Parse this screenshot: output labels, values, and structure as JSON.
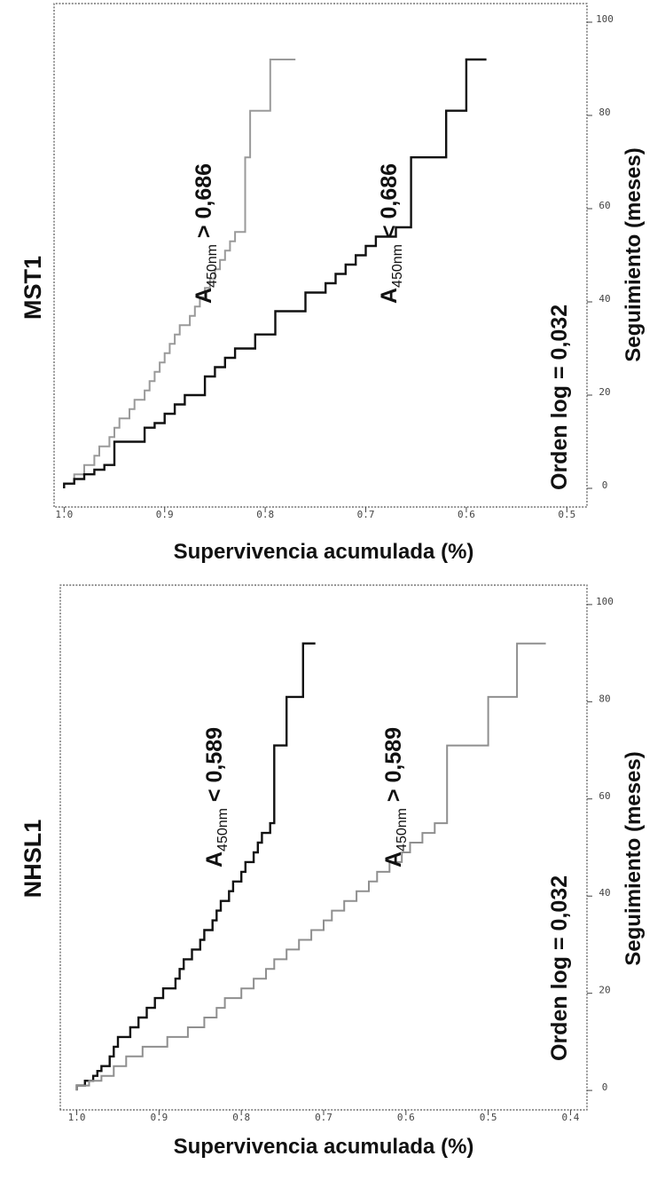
{
  "chart_data": [
    {
      "type": "line",
      "step": true,
      "title": "NHSL1",
      "xlabel": "Seguimiento (meses)",
      "ylabel": "Supervivencia acumulada (%)",
      "xlim": [
        -4,
        104
      ],
      "ylim": [
        0.38,
        1.02
      ],
      "xticks": [
        "0",
        "20",
        "40",
        "60",
        "80",
        "100"
      ],
      "yticks": [
        "1.0",
        "0.9",
        "0.8",
        "0.7",
        "0.6",
        "0.5",
        "0.4"
      ],
      "annotation": "Orden log = 0,032",
      "series": [
        {
          "name_prefix": "A",
          "name_sub": "450nm",
          "name_suffix": " < 0,589",
          "color": "#111111",
          "x": [
            0,
            1,
            2,
            3,
            4,
            5,
            7,
            9,
            11,
            13,
            15,
            17,
            19,
            21,
            23,
            25,
            27,
            29,
            31,
            33,
            35,
            37,
            39,
            41,
            43,
            45,
            47,
            49,
            51,
            53,
            55,
            71,
            81,
            92
          ],
          "y": [
            1.0,
            0.99,
            0.98,
            0.975,
            0.97,
            0.96,
            0.955,
            0.95,
            0.935,
            0.925,
            0.915,
            0.905,
            0.895,
            0.88,
            0.875,
            0.87,
            0.86,
            0.85,
            0.845,
            0.835,
            0.83,
            0.825,
            0.815,
            0.81,
            0.8,
            0.795,
            0.785,
            0.78,
            0.775,
            0.765,
            0.76,
            0.745,
            0.725,
            0.71
          ]
        },
        {
          "name_prefix": "A",
          "name_sub": "450nm",
          "name_suffix": " > 0,589",
          "color": "#8f8f8f",
          "x": [
            0,
            1,
            2,
            3,
            5,
            7,
            9,
            11,
            13,
            15,
            17,
            19,
            21,
            23,
            25,
            27,
            29,
            31,
            33,
            35,
            37,
            39,
            41,
            43,
            45,
            47,
            49,
            51,
            53,
            55,
            71,
            81,
            92
          ],
          "y": [
            1.0,
            0.985,
            0.97,
            0.955,
            0.94,
            0.92,
            0.89,
            0.865,
            0.845,
            0.83,
            0.82,
            0.8,
            0.785,
            0.77,
            0.76,
            0.745,
            0.73,
            0.715,
            0.7,
            0.69,
            0.675,
            0.66,
            0.645,
            0.635,
            0.62,
            0.605,
            0.595,
            0.58,
            0.565,
            0.55,
            0.5,
            0.465,
            0.43
          ]
        }
      ]
    },
    {
      "type": "line",
      "step": true,
      "title": "MST1",
      "xlabel": "Seguimiento (meses)",
      "ylabel": "Supervivencia acumulada (%)",
      "xlim": [
        -4,
        104
      ],
      "ylim": [
        0.48,
        1.01
      ],
      "xticks": [
        "0",
        "20",
        "40",
        "60",
        "80",
        "100"
      ],
      "yticks": [
        "1.0",
        "0.9",
        "0.8",
        "0.7",
        "0.6",
        "0.5"
      ],
      "annotation": "Orden log = 0,032",
      "series": [
        {
          "name_prefix": "A",
          "name_sub": "450nm",
          "name_suffix": " > 0,686",
          "color": "#9a9a9a",
          "x": [
            0,
            1,
            3,
            5,
            7,
            9,
            11,
            13,
            15,
            17,
            19,
            21,
            23,
            25,
            27,
            29,
            31,
            33,
            35,
            37,
            39,
            41,
            43,
            45,
            47,
            49,
            51,
            53,
            55,
            71,
            81,
            92
          ],
          "y": [
            1.0,
            0.99,
            0.98,
            0.97,
            0.965,
            0.955,
            0.95,
            0.945,
            0.935,
            0.93,
            0.92,
            0.915,
            0.91,
            0.905,
            0.9,
            0.895,
            0.89,
            0.885,
            0.875,
            0.87,
            0.865,
            0.86,
            0.855,
            0.85,
            0.845,
            0.84,
            0.835,
            0.83,
            0.82,
            0.815,
            0.795,
            0.77
          ]
        },
        {
          "name_prefix": "A",
          "name_sub": "450nm",
          "name_suffix": " < 0,686",
          "color": "#111111",
          "x": [
            0,
            1,
            2,
            3,
            4,
            5,
            10,
            13,
            14,
            16,
            18,
            20,
            24,
            26,
            28,
            30,
            33,
            38,
            42,
            44,
            46,
            48,
            50,
            52,
            54,
            56,
            71,
            81,
            92
          ],
          "y": [
            1.0,
            0.99,
            0.98,
            0.97,
            0.96,
            0.95,
            0.92,
            0.91,
            0.9,
            0.89,
            0.88,
            0.86,
            0.85,
            0.84,
            0.83,
            0.81,
            0.79,
            0.76,
            0.74,
            0.73,
            0.72,
            0.71,
            0.7,
            0.69,
            0.67,
            0.655,
            0.62,
            0.6,
            0.58
          ]
        }
      ]
    }
  ]
}
